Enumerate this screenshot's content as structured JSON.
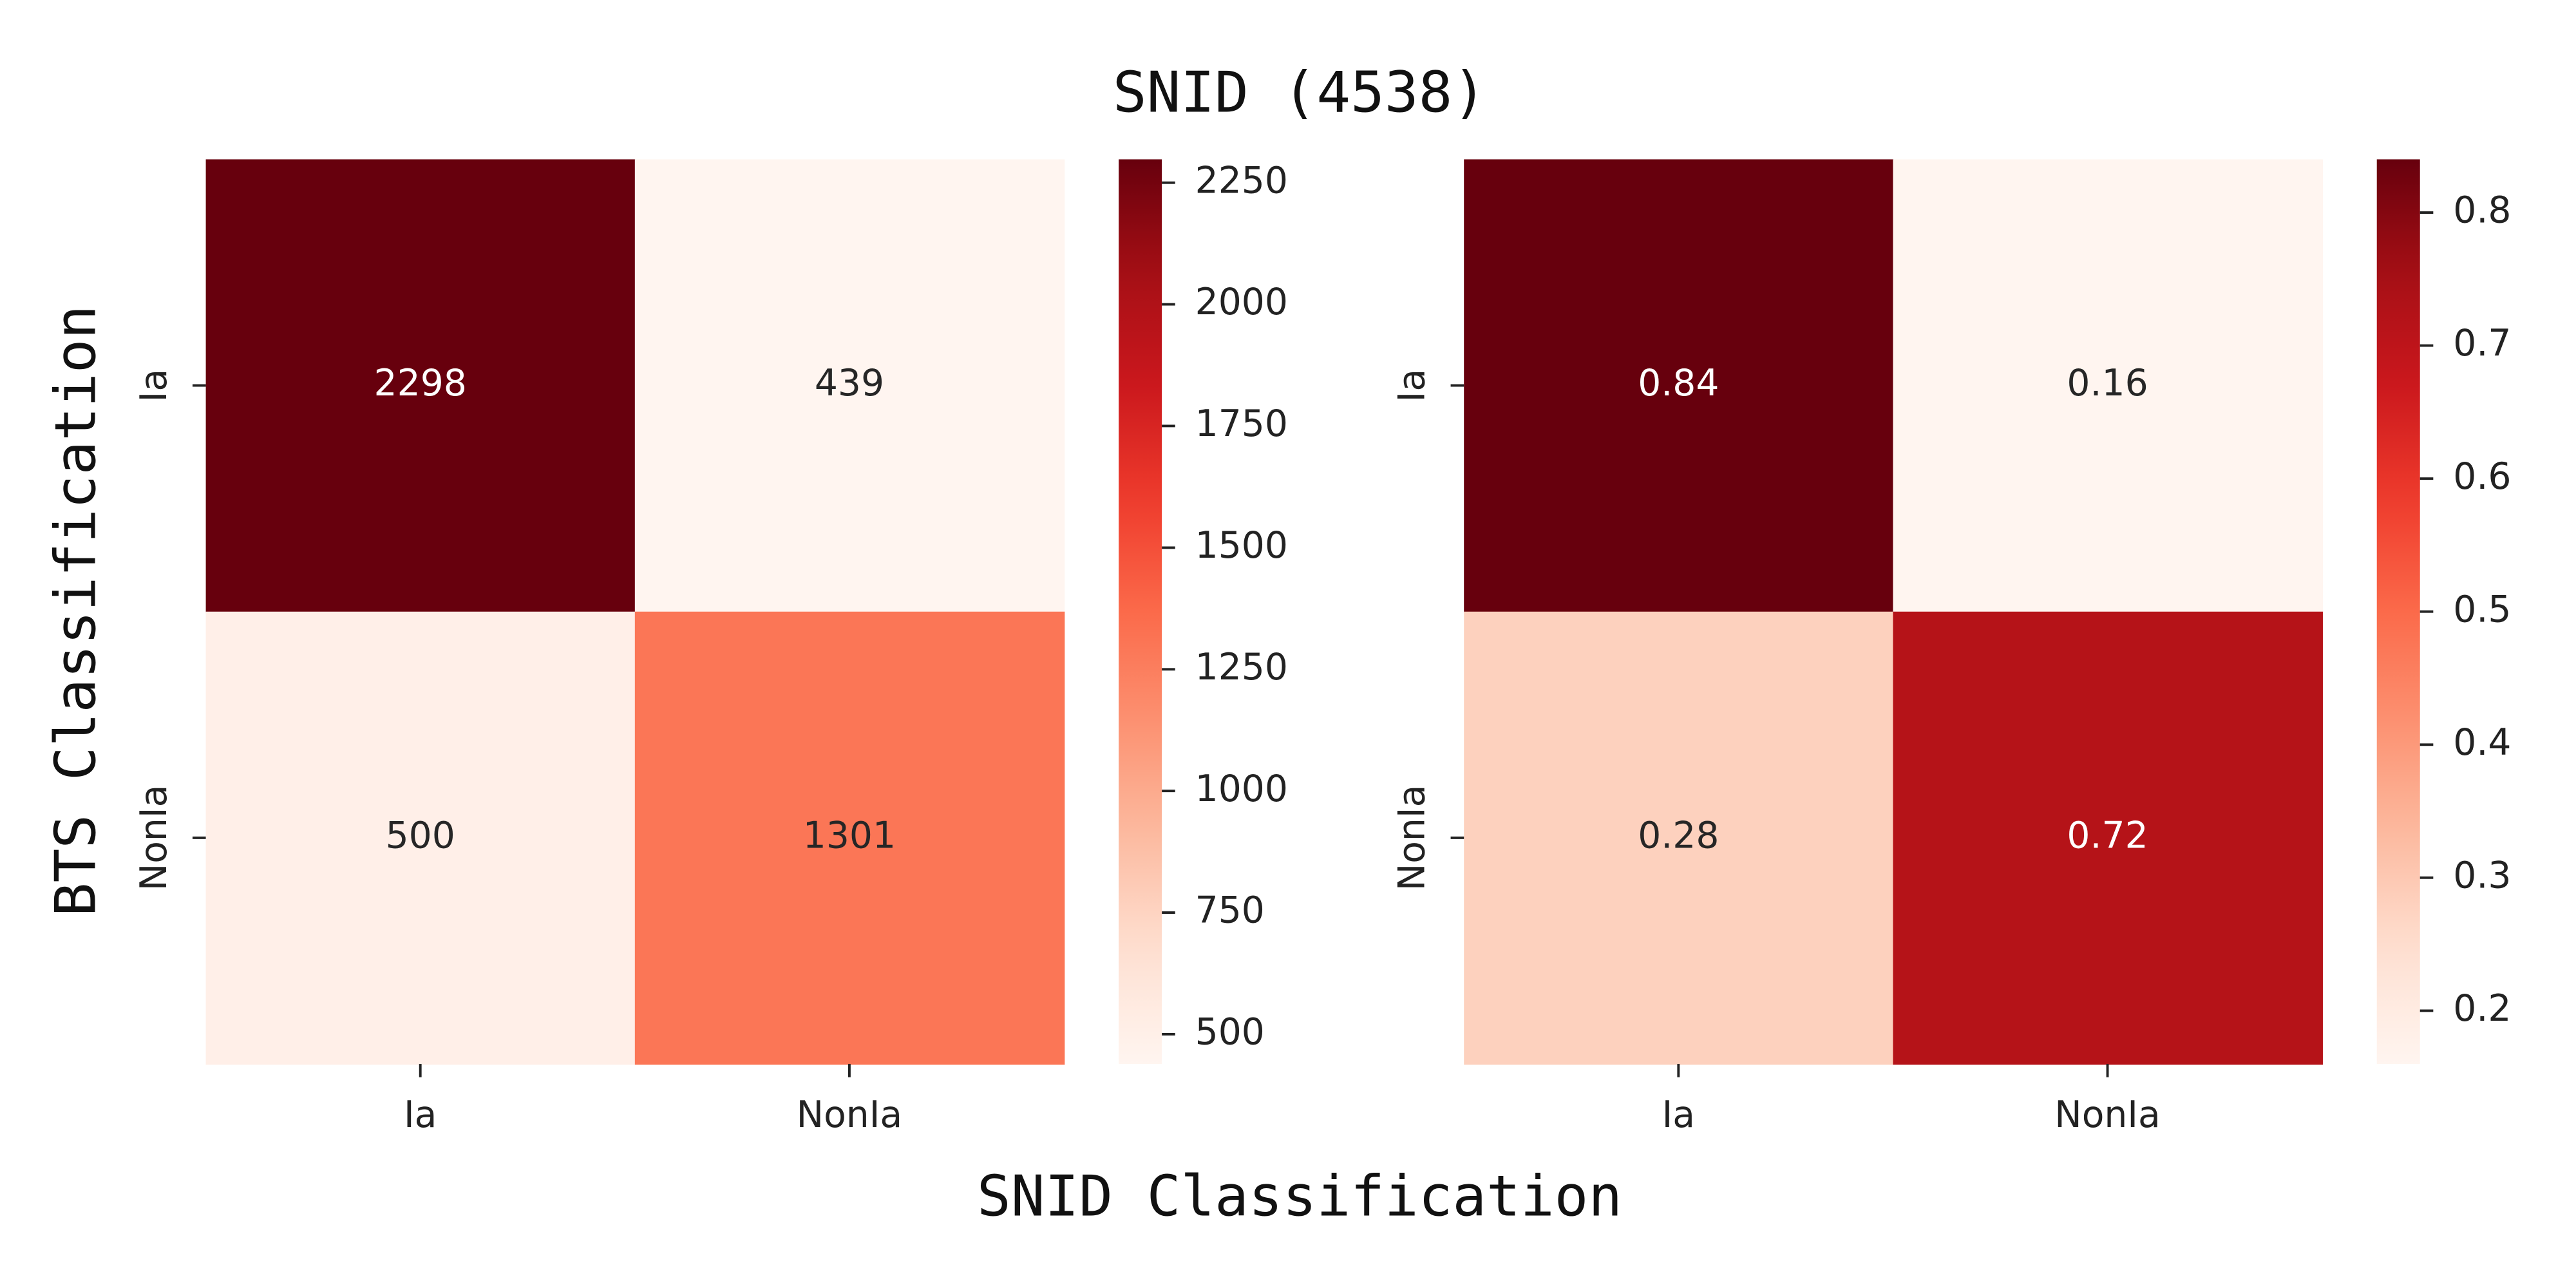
{
  "figure": {
    "title": "SNID (4538)",
    "xlabel": "SNID Classification",
    "ylabel": "BTS Classification"
  },
  "chart_data": [
    {
      "type": "heatmap",
      "x_categories": [
        "Ia",
        "NonIa"
      ],
      "y_categories": [
        "Ia",
        "NonIa"
      ],
      "values": [
        [
          2298,
          439
        ],
        [
          500,
          1301
        ]
      ],
      "colormap": "Reds",
      "clim": [
        439,
        2298
      ],
      "cticks": [
        500,
        750,
        1000,
        1250,
        1500,
        1750,
        2000,
        2250
      ]
    },
    {
      "type": "heatmap",
      "x_categories": [
        "Ia",
        "NonIa"
      ],
      "y_categories": [
        "Ia",
        "NonIa"
      ],
      "values": [
        [
          0.84,
          0.16
        ],
        [
          0.28,
          0.72
        ]
      ],
      "colormap": "Reds",
      "clim": [
        0.16,
        0.84
      ],
      "cticks": [
        0.2,
        0.3,
        0.4,
        0.5,
        0.6,
        0.7,
        0.8
      ]
    }
  ]
}
